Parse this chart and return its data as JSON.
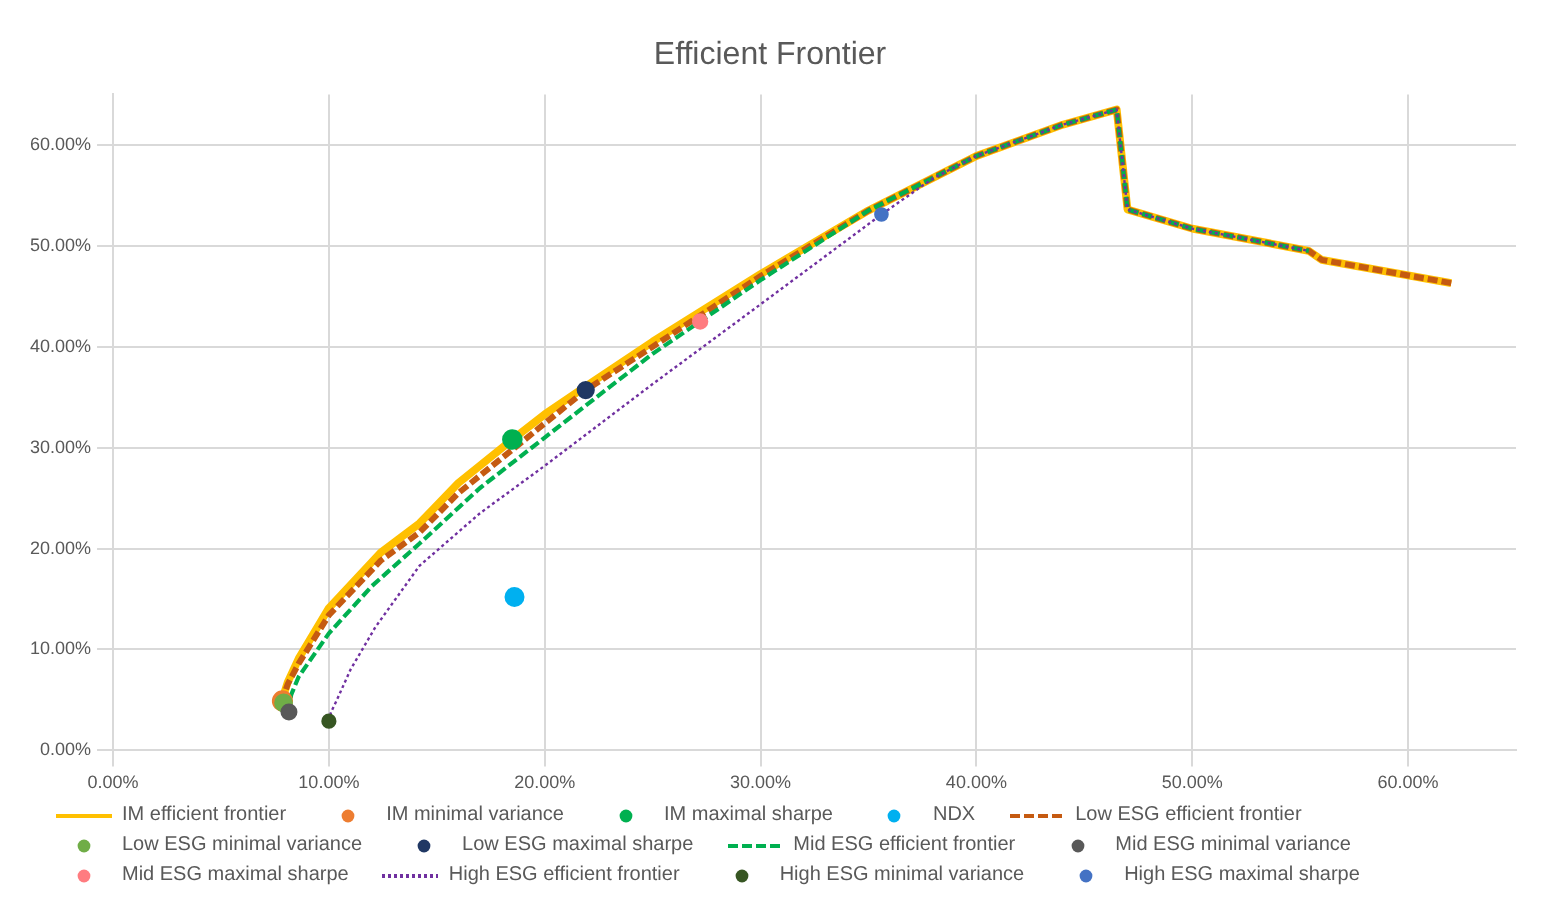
{
  "chart_data": {
    "type": "line",
    "title": "Efficient Frontier",
    "grid": true,
    "legend": "bottom",
    "xlim": [
      0,
      65
    ],
    "ylim": [
      0,
      65
    ],
    "xticks": [
      {
        "value": 0,
        "label": "0.00%"
      },
      {
        "value": 10,
        "label": "10.00%"
      },
      {
        "value": 20,
        "label": "20.00%"
      },
      {
        "value": 30,
        "label": "30.00%"
      },
      {
        "value": 40,
        "label": "40.00%"
      },
      {
        "value": 50,
        "label": "50.00%"
      },
      {
        "value": 60,
        "label": "60.00%"
      }
    ],
    "yticks": [
      {
        "value": 0,
        "label": "0.00%"
      },
      {
        "value": 10,
        "label": "10.00%"
      },
      {
        "value": 20,
        "label": "20.00%"
      },
      {
        "value": 30,
        "label": "30.00%"
      },
      {
        "value": 40,
        "label": "40.00%"
      },
      {
        "value": 50,
        "label": "50.00%"
      },
      {
        "value": 60,
        "label": "60.00%"
      }
    ],
    "series": [
      {
        "name": "IM efficient frontier",
        "marker": "none",
        "line_style": "solid",
        "color": "#ffc000",
        "x": [
          7.9,
          7.95,
          8.1,
          8.6,
          10,
          12.4,
          14.2,
          16,
          18.5,
          20,
          22,
          25,
          30,
          35,
          40,
          44,
          46.5,
          47.0,
          50,
          55.4,
          56.0,
          62.0
        ],
        "values": [
          4.8,
          5.8,
          6.8,
          9.1,
          14.1,
          19.6,
          22.5,
          26.5,
          30.8,
          33.3,
          36.2,
          40.5,
          47.2,
          53.5,
          58.9,
          62,
          63.5,
          53.6,
          51.7,
          49.5,
          48.6,
          46.3
        ]
      },
      {
        "name": "IM minimal variance",
        "type": "scatter",
        "marker": "circle",
        "color": "#ed7d31",
        "x": [
          7.85
        ],
        "values": [
          4.9
        ]
      },
      {
        "name": "IM maximal sharpe",
        "type": "scatter",
        "marker": "circle",
        "color": "#00b050",
        "x": [
          18.5
        ],
        "values": [
          30.8
        ]
      },
      {
        "name": "NDX",
        "type": "scatter",
        "marker": "circle",
        "color": "#00b0f0",
        "x": [
          18.6
        ],
        "values": [
          15.2
        ]
      },
      {
        "name": "Low ESG efficient frontier",
        "marker": "none",
        "line_style": "dashed",
        "color": "#c55a11",
        "x": [
          7.9,
          7.95,
          8.1,
          8.6,
          10,
          12.4,
          14.2,
          16,
          18.5,
          20,
          21.9,
          25,
          30,
          35,
          40,
          44,
          46.5,
          47.0,
          50,
          55.4,
          56.0,
          62.0
        ],
        "values": [
          4.7,
          5.7,
          6.6,
          8.6,
          13.4,
          18.8,
          21.6,
          25.5,
          29.8,
          32.4,
          35.7,
          40.0,
          47.0,
          53.5,
          58.9,
          62,
          63.5,
          53.6,
          51.7,
          49.5,
          48.6,
          46.3
        ]
      },
      {
        "name": "Low ESG minimal variance",
        "type": "scatter",
        "marker": "circle",
        "color": "#70ad47",
        "x": [
          7.9
        ],
        "values": [
          4.7
        ]
      },
      {
        "name": "Low ESG maximal sharpe",
        "type": "scatter",
        "marker": "circle",
        "color": "#203864",
        "x": [
          21.9
        ],
        "values": [
          35.7
        ]
      },
      {
        "name": "Mid ESG efficient frontier",
        "marker": "none",
        "line_style": "dashed",
        "color": "#00b050",
        "x": [
          8.15,
          8.25,
          8.6,
          10,
          12,
          14.2,
          17,
          20,
          23,
          25,
          27.2,
          30,
          35,
          40,
          44,
          46.5,
          47.0,
          50,
          55.4
        ],
        "values": [
          3.8,
          5.5,
          7.3,
          11.6,
          16.3,
          20.5,
          26,
          31,
          36,
          39.3,
          42.5,
          46.6,
          53.5,
          58.9,
          62,
          63.5,
          53.6,
          51.7,
          49.5
        ]
      },
      {
        "name": "Mid ESG minimal variance",
        "type": "scatter",
        "marker": "circle",
        "color": "#595959",
        "x": [
          8.15
        ],
        "values": [
          3.8
        ]
      },
      {
        "name": "Mid ESG maximal sharpe",
        "type": "scatter",
        "marker": "circle",
        "color": "#ff7c80",
        "x": [
          27.2
        ],
        "values": [
          42.5
        ]
      },
      {
        "name": "High ESG efficient frontier",
        "marker": "none",
        "line_style": "dotted",
        "color": "#7030a0",
        "x": [
          10.0,
          10.1,
          10.35,
          11,
          12.15,
          14.2,
          17,
          20,
          25,
          30,
          35.6,
          38,
          40,
          44,
          46.5,
          47.0,
          50,
          55.4
        ],
        "values": [
          2.9,
          3.8,
          4.9,
          8,
          12.2,
          18.3,
          23.5,
          28.2,
          36.3,
          44.2,
          53.1,
          56.7,
          58.9,
          62,
          63.5,
          53.6,
          51.7,
          49.5
        ]
      },
      {
        "name": "High ESG minimal variance",
        "type": "scatter",
        "marker": "circle",
        "color": "#375623",
        "x": [
          10.0
        ],
        "values": [
          2.9
        ]
      },
      {
        "name": "High ESG maximal sharpe",
        "type": "scatter",
        "marker": "circle",
        "color": "#4472c4",
        "x": [
          35.6
        ],
        "values": [
          53.1
        ]
      }
    ]
  }
}
